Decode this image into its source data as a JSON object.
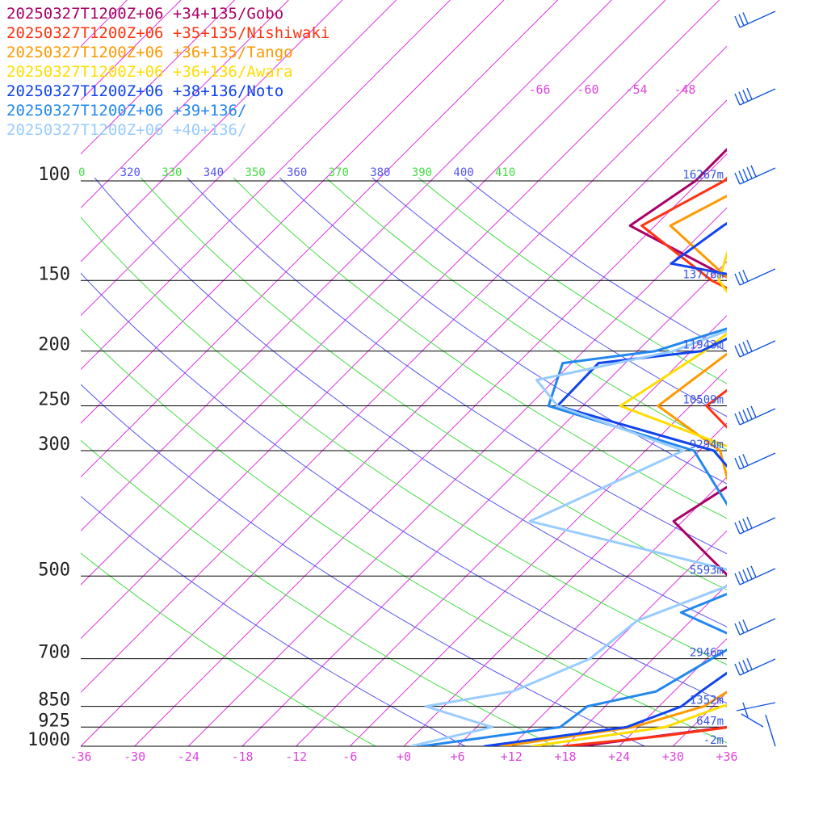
{
  "chart_data": {
    "type": "line",
    "title": "",
    "xlabel": "",
    "ylabel": "",
    "x_unit": "deg C (skewed)",
    "y_scale": "log pressure",
    "xlim": [
      -36,
      36
    ],
    "ylim": [
      1000,
      100
    ],
    "pressure_levels": [
      100,
      150,
      200,
      250,
      300,
      500,
      700,
      850,
      925,
      1000
    ],
    "pressure_labels": [
      "100",
      "150",
      "200",
      "250",
      "300",
      "500",
      "700",
      "850",
      "925",
      "1000"
    ],
    "height_labels": [
      {
        "p": 100,
        "text": "16267m"
      },
      {
        "p": 150,
        "text": "13776m"
      },
      {
        "p": 200,
        "text": "11943m"
      },
      {
        "p": 250,
        "text": "10509m"
      },
      {
        "p": 300,
        "text": "9294m"
      },
      {
        "p": 500,
        "text": "5593m"
      },
      {
        "p": 700,
        "text": "2946m"
      },
      {
        "p": 850,
        "text": "1352m"
      },
      {
        "p": 925,
        "text": "647m"
      },
      {
        "p": 1000,
        "text": "-2m"
      }
    ],
    "x_tick_labels": [
      "-36",
      "-30",
      "-24",
      "-18",
      "-12",
      "-6",
      "+0",
      "+6",
      "+12",
      "+18",
      "+24",
      "+30",
      "+36"
    ],
    "upper_temp_labels": [
      "-66",
      "-60",
      "-54",
      "-48"
    ],
    "theta_labels": [
      {
        "text": "0",
        "color": "#44dd44"
      },
      {
        "text": "320",
        "color": "#5555ee"
      },
      {
        "text": "330",
        "color": "#44dd44"
      },
      {
        "text": "340",
        "color": "#5555ee"
      },
      {
        "text": "350",
        "color": "#44dd44"
      },
      {
        "text": "360",
        "color": "#5555ee"
      },
      {
        "text": "370",
        "color": "#44dd44"
      },
      {
        "text": "380",
        "color": "#5555ee"
      },
      {
        "text": "390",
        "color": "#44dd44"
      },
      {
        "text": "400",
        "color": "#5555ee"
      },
      {
        "text": "410",
        "color": "#44dd44"
      }
    ],
    "series": [
      {
        "name": "20250327T1200Z+06 +34+135/Gobo",
        "color": "#aa0066",
        "points": [
          [
            100,
            -30.5
          ],
          [
            120,
            -32.8
          ],
          [
            150,
            -15.2
          ],
          [
            175,
            -2.6
          ],
          [
            200,
            1.4
          ],
          [
            250,
            6.4
          ],
          [
            260,
            5.4
          ],
          [
            300,
            9.4
          ],
          [
            400,
            5.0
          ],
          [
            500,
            17.2
          ],
          [
            550,
            27.1
          ],
          [
            700,
            37.2
          ],
          [
            780,
            39.0
          ],
          [
            850,
            38.0
          ],
          [
            880,
            39.0
          ],
          [
            925,
            33.9
          ],
          [
            1000,
            19.6
          ]
        ]
      },
      {
        "name": "20250327T1200Z+06 +35+135/Nishiwaki",
        "color": "#ff3311",
        "points": [
          [
            100,
            -27.3
          ],
          [
            120,
            -31.5
          ],
          [
            150,
            -17.6
          ],
          [
            175,
            -4.9
          ],
          [
            200,
            -2.3
          ],
          [
            250,
            -4.2
          ],
          [
            300,
            5.6
          ],
          [
            500,
            31.5
          ],
          [
            700,
            38.2
          ],
          [
            800,
            37.5
          ],
          [
            850,
            34.0
          ],
          [
            925,
            34.2
          ],
          [
            960,
            27.5
          ],
          [
            1000,
            17.8
          ]
        ]
      },
      {
        "name": "20250327T1200Z+06 +36+135/Tango",
        "color": "#ff9900",
        "points": [
          [
            100,
            -23.8
          ],
          [
            120,
            -28.3
          ],
          [
            150,
            -15.5
          ],
          [
            175,
            -7.1
          ],
          [
            200,
            -7.6
          ],
          [
            250,
            -9.6
          ],
          [
            300,
            2.3
          ],
          [
            500,
            19.9
          ],
          [
            550,
            20.1
          ],
          [
            700,
            28.5
          ],
          [
            800,
            30.0
          ],
          [
            850,
            29.0
          ],
          [
            925,
            23.4
          ],
          [
            1000,
            11.0
          ]
        ]
      },
      {
        "name": "20250327T1200Z+06 +36+136/Awara",
        "color": "#ffdd00",
        "points": [
          [
            100,
            -24.5
          ],
          [
            150,
            -16.8
          ],
          [
            175,
            -9.5
          ],
          [
            200,
            -10.5
          ],
          [
            250,
            -13.8
          ],
          [
            300,
            4.4
          ],
          [
            500,
            31.5
          ],
          [
            700,
            33.7
          ],
          [
            800,
            36.0
          ],
          [
            850,
            31.0
          ],
          [
            925,
            27.0
          ],
          [
            1000,
            14.3
          ]
        ]
      },
      {
        "name": "20250327T1200Z+06 +38+136/Noto",
        "color": "#1144ee",
        "points": [
          [
            100,
            -19.5
          ],
          [
            120,
            -22.4
          ],
          [
            140,
            -24.0
          ],
          [
            150,
            -12.1
          ],
          [
            175,
            -6.9
          ],
          [
            200,
            -10.9
          ],
          [
            210,
            -21.0
          ],
          [
            250,
            -20.8
          ],
          [
            300,
            1.6
          ],
          [
            500,
            27.5
          ],
          [
            600,
            31.0
          ],
          [
            700,
            28.5
          ],
          [
            800,
            27.0
          ],
          [
            850,
            26.5
          ],
          [
            925,
            22.7
          ],
          [
            1000,
            9.0
          ]
        ]
      },
      {
        "name": "20250327T1200Z+06 +39+136/",
        "color": "#2288ee",
        "points": [
          [
            100,
            -19.0
          ],
          [
            120,
            -14.0
          ],
          [
            150,
            -11.6
          ],
          [
            175,
            -8.0
          ],
          [
            200,
            -16.0
          ],
          [
            210,
            -25.0
          ],
          [
            250,
            -21.8
          ],
          [
            300,
            -0.6
          ],
          [
            500,
            22.0
          ],
          [
            580,
            16.0
          ],
          [
            650,
            26.0
          ],
          [
            800,
            22.0
          ],
          [
            850,
            16.0
          ],
          [
            925,
            15.3
          ],
          [
            1000,
            2.0
          ]
        ]
      },
      {
        "name": "20250327T1200Z+06 +40+136/",
        "color": "#99ccff",
        "points": [
          [
            100,
            -17.5
          ],
          [
            120,
            -12.6
          ],
          [
            150,
            -11.3
          ],
          [
            175,
            -8.0
          ],
          [
            200,
            -14.0
          ],
          [
            225,
            -26.0
          ],
          [
            250,
            -20.8
          ],
          [
            300,
            -1.8
          ],
          [
            400,
            -11.0
          ],
          [
            500,
            20.0
          ],
          [
            600,
            12.0
          ],
          [
            700,
            11.0
          ],
          [
            800,
            6.0
          ],
          [
            850,
            -2.0
          ],
          [
            925,
            7.7
          ],
          [
            1000,
            0.8
          ]
        ]
      }
    ]
  }
}
